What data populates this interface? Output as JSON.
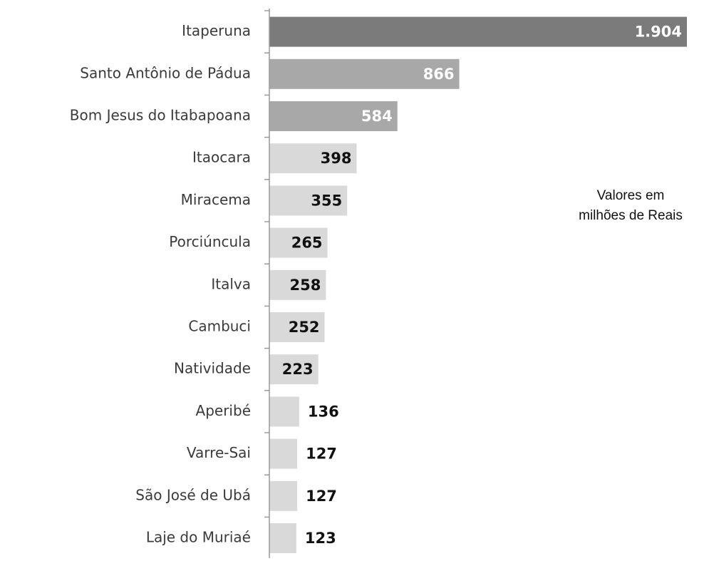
{
  "chart_data": {
    "type": "bar",
    "orientation": "horizontal",
    "categories": [
      "Itaperuna",
      "Santo Antônio de Pádua",
      "Bom Jesus do Itabapoana",
      "Itaocara",
      "Miracema",
      "Porciúncula",
      "Italva",
      "Cambuci",
      "Natividade",
      "Aperibé",
      "Varre-Sai",
      "São José de Ubá",
      "Laje do Muriaé"
    ],
    "values": [
      1904,
      866,
      584,
      398,
      355,
      265,
      258,
      252,
      223,
      136,
      127,
      127,
      123
    ],
    "value_labels": [
      "1.904",
      "866",
      "584",
      "398",
      "355",
      "265",
      "258",
      "252",
      "223",
      "136",
      "127",
      "127",
      "123"
    ],
    "colors": [
      "#7b7b7b",
      "#a8a8a8",
      "#a8a8a8",
      "#d9d9d9",
      "#d9d9d9",
      "#d9d9d9",
      "#d9d9d9",
      "#d9d9d9",
      "#d9d9d9",
      "#d9d9d9",
      "#d9d9d9",
      "#d9d9d9",
      "#d9d9d9"
    ],
    "annotation": [
      "Valores em",
      "milhões de Reais"
    ]
  }
}
